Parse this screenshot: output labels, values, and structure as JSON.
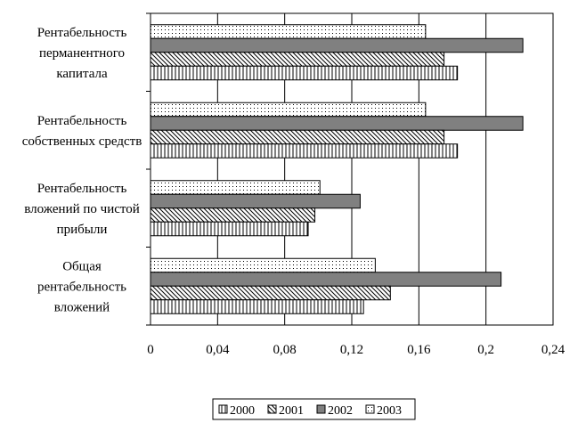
{
  "chart_data": {
    "type": "bar",
    "orientation": "horizontal",
    "categories": [
      [
        "Рентабельность",
        "перманентного",
        "капитала"
      ],
      [
        "Рентабельность",
        "собственных средств"
      ],
      [
        "Рентабельность",
        "вложений по чистой",
        "прибыли"
      ],
      [
        "Общая",
        "рентабельность",
        "вложений"
      ]
    ],
    "series": [
      {
        "name": "2000",
        "pattern": "vertical-lines",
        "values": [
          0.183,
          0.183,
          0.094,
          0.127
        ]
      },
      {
        "name": "2001",
        "pattern": "diagonal-lines",
        "values": [
          0.175,
          0.175,
          0.098,
          0.143
        ]
      },
      {
        "name": "2002",
        "pattern": "solid-dark",
        "color": "#808080",
        "values": [
          0.222,
          0.222,
          0.125,
          0.209
        ]
      },
      {
        "name": "2003",
        "pattern": "dots",
        "values": [
          0.164,
          0.164,
          0.101,
          0.134
        ]
      }
    ],
    "xlim": [
      0,
      0.24
    ],
    "xticks": [
      "0",
      "0,04",
      "0,08",
      "0,12",
      "0,16",
      "0,2",
      "0,24"
    ],
    "grid": true,
    "legend_position": "bottom"
  }
}
